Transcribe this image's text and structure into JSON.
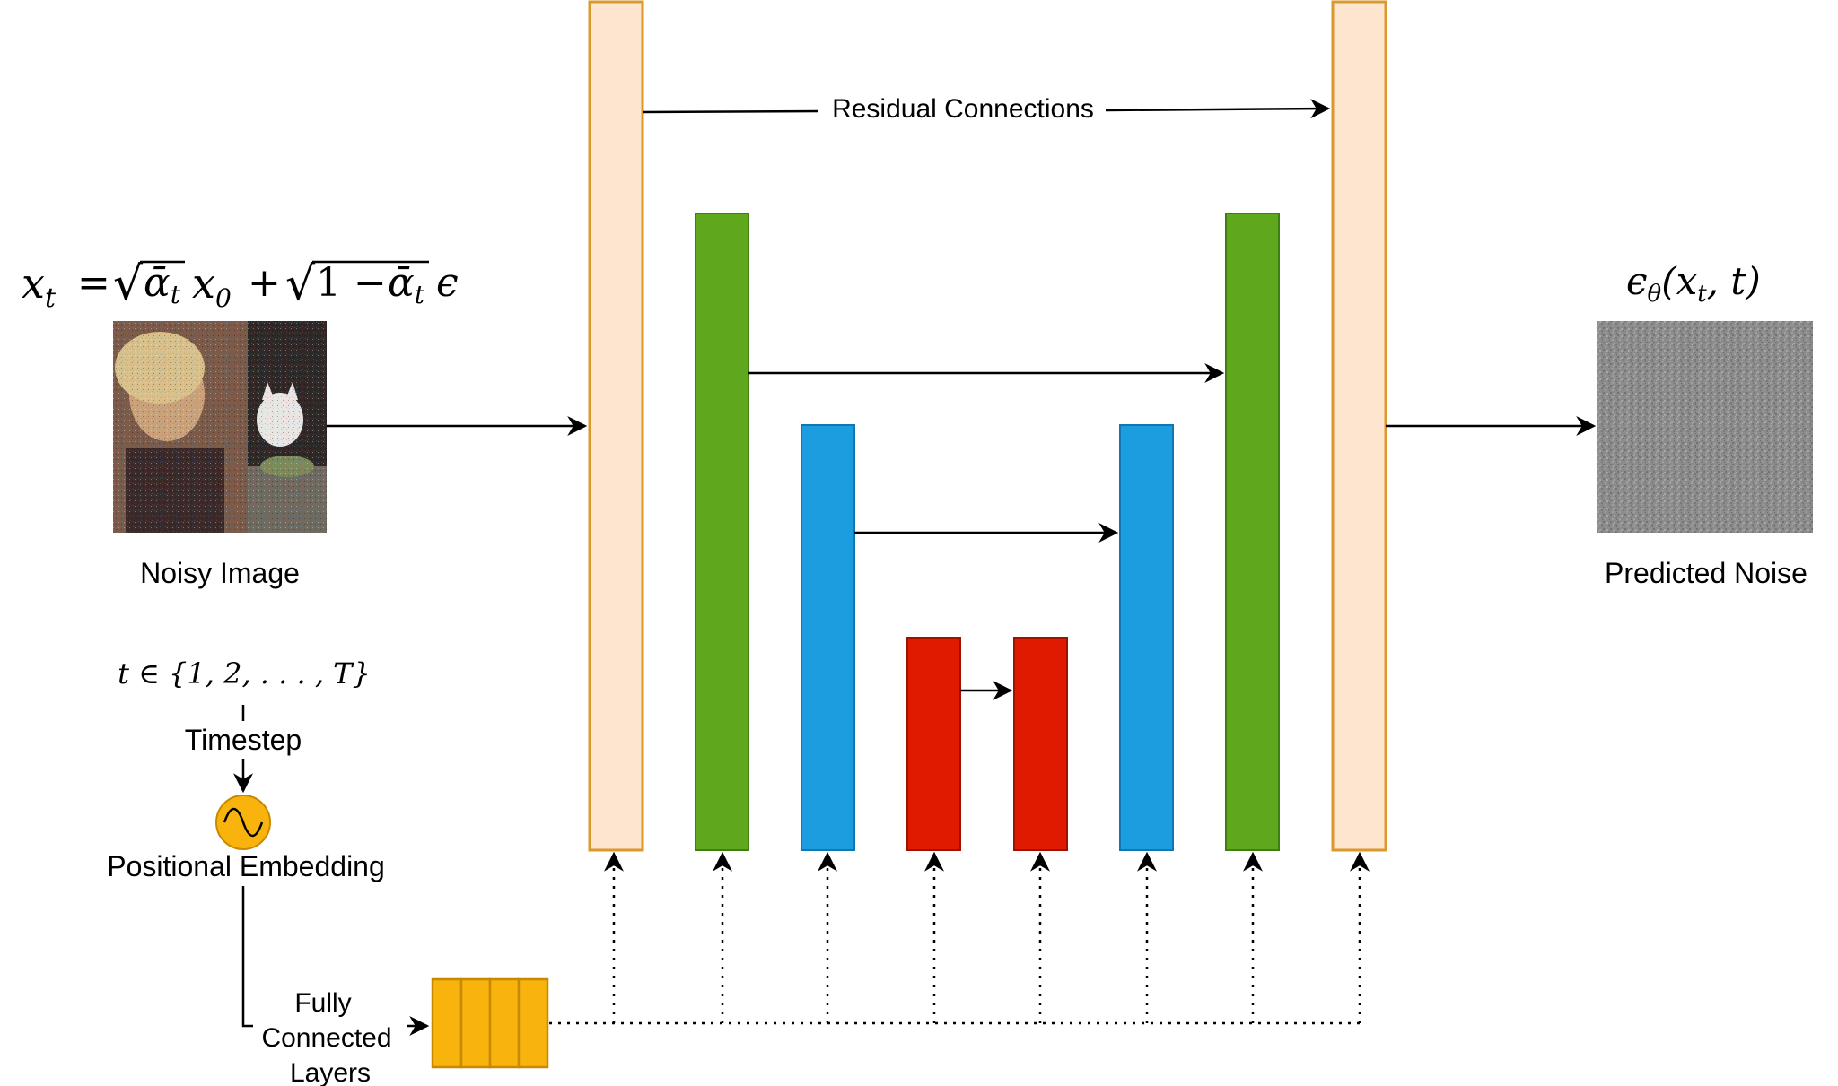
{
  "colors": {
    "outer": "#fde5cf",
    "outer_border": "#d99a2b",
    "level2": "#5fa81e",
    "level2_border": "#3f7f12",
    "level3": "#1b9de0",
    "level3_border": "#1277b0",
    "level4": "#e01a00",
    "level4_border": "#a01200",
    "embedding": "#f8b40d",
    "fc_layers": "#f8b40d"
  },
  "left": {
    "equation": {
      "lhs": "x",
      "lhs_sub": "t",
      "eq": "=",
      "sqrt1": "√",
      "abar1": "ᾱ",
      "abar1_sub": "t",
      "x0": "x",
      "x0_sub": "0",
      "plus": "+",
      "sqrt2": "√",
      "one_minus": "1 − ",
      "abar2": "ᾱ",
      "abar2_sub": "t",
      "eps": "ϵ"
    },
    "image_label": "Noisy Image"
  },
  "right": {
    "formula": {
      "eps": "ϵ",
      "eps_sub": "θ",
      "open": "(",
      "x": "x",
      "x_sub": "t",
      "comma": ", ",
      "t": "t",
      "close": ")"
    },
    "image_label": "Predicted Noise"
  },
  "unet": {
    "residual_label": "Residual Connections"
  },
  "timestep": {
    "set_text": "t ∈ {1, 2, . . . , T}",
    "label": "Timestep",
    "embedding_label": "Positional Embedding",
    "fc_label_1": "Fully",
    "fc_label_2": "Connected",
    "fc_label_3": "Layers"
  }
}
